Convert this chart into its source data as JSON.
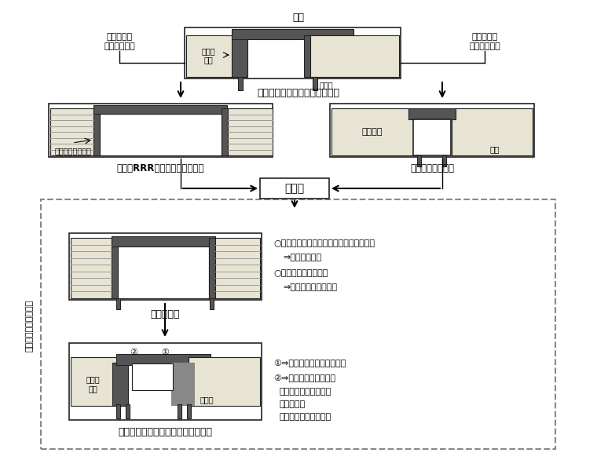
{
  "bg_color": "#ffffff",
  "border_color": "#222222",
  "fill_light": "#e8e4d4",
  "fill_dark": "#555555",
  "fill_mid": "#888888",
  "fill_white": "#ffffff",
  "dashed_color": "#888888",
  "title_top": "橋桁",
  "label_left_top1": "主に盛土の",
  "label_left_top2": "諸問題を解決",
  "label_right_top1": "主に橋梁の",
  "label_right_top2": "諸問題を解決",
  "caption_top": "従来の重力式橋台を有する橋梁",
  "caption_bl": "橋台にRRR工法を応用した橋梁",
  "caption_br": "インテグラル橋梁",
  "label_geotextile": "ジオテキスタイル",
  "label_haiseki": "背面盛土",
  "label_kiban": "基盤",
  "label_fusion": "融　合",
  "label_new_type": "新設タイプ",
  "label_old_type": "老朽橋梁再生のリニューアルタイプ",
  "label_jyuuryoku": "重力式\n橋台",
  "label_kou": "杭基礎",
  "label_kou2": "杭基礎",
  "text_o1": "○盛土の補強ならびに橋台と盛土の一体化",
  "text_arr1": "⇒　ＲＲＲ工法",
  "text_o2": "○橋台と橋桁の一体化",
  "text_arr2": "⇒　インテグラル橋梁",
  "text_1arrow": "①⇒　ラディッシュアンカー",
  "text_2arrow": "②⇒　後付けラーメン化",
  "text_2sub1": "・コンクリート巻立て",
  "text_2sub2": "・類枕補強",
  "text_2sub3": "・ＰＣ鋼棒緊張　など",
  "label_side": "補強土併用一体化橋梁"
}
